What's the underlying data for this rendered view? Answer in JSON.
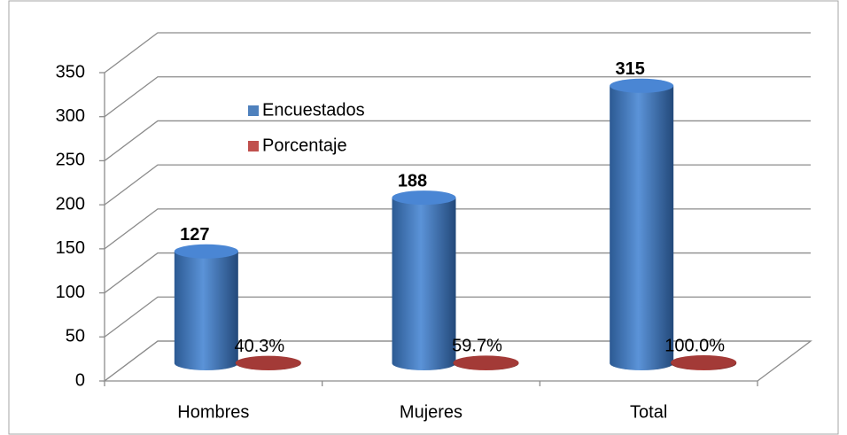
{
  "chart_data": {
    "type": "bar3d",
    "categories": [
      "Hombres",
      "Mujeres",
      "Total"
    ],
    "series": [
      {
        "name": "Encuestados",
        "color": "#4f81bd",
        "values": [
          127,
          188,
          315
        ]
      },
      {
        "name": "Porcentaje",
        "color": "#c0504d",
        "values": [
          0.403,
          0.597,
          1.0
        ],
        "value_labels": [
          "40.3%",
          "59.7%",
          "100.0%"
        ]
      }
    ],
    "ylim": [
      0,
      350
    ],
    "yticks": [
      0,
      50,
      100,
      150,
      200,
      250,
      300,
      350
    ],
    "grid": true,
    "legend": "center"
  }
}
